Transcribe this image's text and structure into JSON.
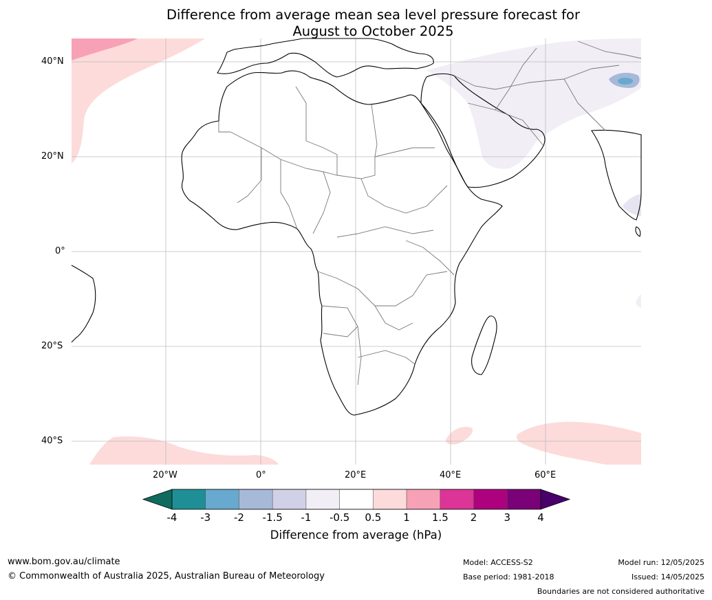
{
  "title": {
    "line1": "Difference from average mean sea level pressure forecast for",
    "line2": "August to October 2025"
  },
  "lat_labels": [
    "40°N",
    "20°N",
    "0°",
    "20°S",
    "40°S"
  ],
  "lon_labels": [
    "20°W",
    "0°",
    "20°E",
    "40°E",
    "60°E"
  ],
  "colorbar": {
    "title": "Difference from average (hPa)",
    "ticks": [
      "-4",
      "-3",
      "-2",
      "-1.5",
      "-1",
      "-0.5",
      "0.5",
      "1",
      "1.5",
      "2",
      "3",
      "4"
    ],
    "colors": [
      "#0f6b5e",
      "#1f8f96",
      "#67a9cf",
      "#a6b9d8",
      "#d0d1e6",
      "#f1eef6",
      "#ffffff",
      "#fddbdb",
      "#f7a1b6",
      "#dd3497",
      "#ae017e",
      "#7a0177",
      "#49006a"
    ]
  },
  "footer": {
    "url": "www.bom.gov.au/climate",
    "copyright": "© Commonwealth of Australia 2025, Australian Bureau of Meteorology",
    "model": "Model: ACCESS-S2",
    "base_period": "Base period: 1981-2018",
    "model_run": "Model run: 12/05/2025",
    "issued": "Issued: 14/05/2025",
    "disclaimer": "Boundaries are not considered authoritative"
  }
}
